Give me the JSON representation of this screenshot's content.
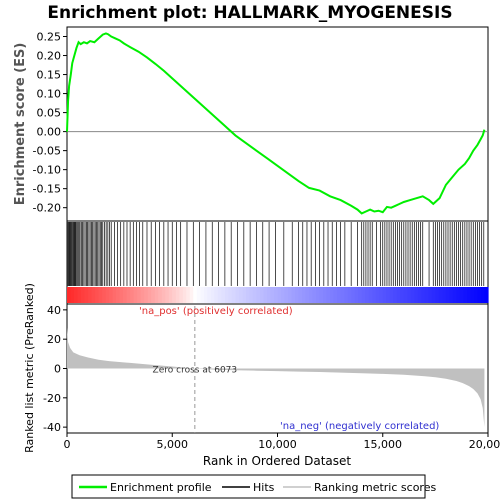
{
  "chart_data": {
    "type": "line",
    "title": "Enrichment plot: HALLMARK_MYOGENESIS",
    "es_panel": {
      "ylabel": "Enrichment score (ES)",
      "ylim": [
        -0.235,
        0.275
      ],
      "yticks": [
        0.25,
        0.2,
        0.15,
        0.1,
        0.05,
        0.0,
        -0.05,
        -0.1,
        -0.15,
        -0.2
      ],
      "ytick_labels": [
        "0.25",
        "0.20",
        "0.15",
        "0.10",
        "0.05",
        "0.00",
        "-0.05",
        "-0.10",
        "-0.15",
        "-0.20"
      ],
      "series": [
        {
          "name": "Enrichment profile",
          "color": "#00ee00",
          "x": [
            0,
            50,
            100,
            180,
            250,
            350,
            450,
            550,
            650,
            800,
            950,
            1100,
            1300,
            1500,
            1700,
            1850,
            1950,
            2100,
            2300,
            2500,
            2700,
            3000,
            3400,
            3800,
            4200,
            4600,
            5000,
            5500,
            6000,
            6500,
            7000,
            7500,
            8000,
            8500,
            9000,
            9500,
            10000,
            10500,
            11000,
            11500,
            12000,
            12500,
            13000,
            13500,
            13800,
            14000,
            14200,
            14400,
            14600,
            14800,
            15000,
            15200,
            15400,
            15600,
            15800,
            16000,
            16300,
            16600,
            16900,
            17200,
            17400,
            17700,
            18000,
            18300,
            18600,
            18900,
            19100,
            19300,
            19500,
            19650,
            19750,
            19830
          ],
          "y": [
            0.0,
            0.08,
            0.12,
            0.15,
            0.18,
            0.2,
            0.22,
            0.235,
            0.23,
            0.235,
            0.232,
            0.238,
            0.235,
            0.245,
            0.255,
            0.258,
            0.256,
            0.25,
            0.245,
            0.24,
            0.232,
            0.222,
            0.21,
            0.195,
            0.178,
            0.16,
            0.14,
            0.115,
            0.09,
            0.065,
            0.04,
            0.015,
            -0.01,
            -0.03,
            -0.05,
            -0.07,
            -0.09,
            -0.11,
            -0.13,
            -0.148,
            -0.155,
            -0.17,
            -0.18,
            -0.195,
            -0.205,
            -0.215,
            -0.21,
            -0.205,
            -0.21,
            -0.208,
            -0.212,
            -0.198,
            -0.2,
            -0.195,
            -0.19,
            -0.185,
            -0.18,
            -0.175,
            -0.17,
            -0.18,
            -0.19,
            -0.175,
            -0.14,
            -0.12,
            -0.1,
            -0.085,
            -0.07,
            -0.05,
            -0.035,
            -0.02,
            -0.01,
            0.005
          ]
        }
      ]
    },
    "hits_panel": {
      "hit_ranks": [
        20,
        60,
        100,
        140,
        180,
        220,
        260,
        300,
        340,
        380,
        420,
        470,
        520,
        570,
        620,
        680,
        740,
        800,
        860,
        920,
        980,
        1040,
        1100,
        1160,
        1220,
        1280,
        1340,
        1400,
        1460,
        1520,
        1580,
        1640,
        1700,
        1780,
        1860,
        1940,
        2020,
        2100,
        2250,
        2400,
        2550,
        2700,
        2850,
        3000,
        3150,
        3300,
        3450,
        3600,
        3800,
        4000,
        4200,
        4400,
        4600,
        4800,
        5000,
        5200,
        5400,
        5700,
        6000,
        6300,
        6600,
        6900,
        7200,
        7500,
        7800,
        8100,
        8400,
        8700,
        9000,
        9300,
        9600,
        9900,
        10300,
        10700,
        11000,
        11200,
        11400,
        11600,
        11800,
        12000,
        12200,
        12400,
        12600,
        12800,
        13000,
        13200,
        13500,
        13800,
        14000,
        14100,
        14200,
        14300,
        14400,
        14500,
        14700,
        14900,
        15000,
        15100,
        15200,
        15300,
        15400,
        15500,
        15600,
        15700,
        15800,
        15900,
        16000,
        16100,
        16200,
        16300,
        16400,
        16500,
        16600,
        16700,
        16800,
        16900,
        17200,
        17400,
        17500,
        17600,
        17700,
        17800,
        17900,
        18000,
        18100,
        18200,
        18300,
        18400,
        18500,
        18600,
        18700,
        18800,
        18900,
        19000,
        19100,
        19200,
        19300,
        19400,
        19500,
        19600,
        19700,
        19800
      ]
    },
    "metric_panel": {
      "ylabel": "Ranked list metric (PreRanked)",
      "xlabel": "Rank in Ordered Dataset",
      "ylim": [
        -44,
        44
      ],
      "yticks": [
        40,
        20,
        0,
        -20,
        -40
      ],
      "ytick_labels": [
        "40",
        "20",
        "0",
        "-20",
        "-40"
      ],
      "xlim": [
        0,
        20000
      ],
      "xticks": [
        0,
        5000,
        10000,
        15000,
        20000
      ],
      "xtick_labels": [
        "0",
        "5,000",
        "10,000",
        "15,000",
        "20,000"
      ],
      "metric_x": [
        0,
        50,
        150,
        300,
        600,
        1000,
        1500,
        2000,
        3000,
        4000,
        5000,
        6073,
        7000,
        8000,
        9000,
        10000,
        11000,
        12000,
        13000,
        14000,
        15000,
        16000,
        17000,
        17500,
        18000,
        18500,
        18800,
        19100,
        19300,
        19500,
        19650,
        19750,
        19830
      ],
      "metric_y": [
        28,
        18,
        14,
        11,
        9,
        7.5,
        6,
        5,
        3.8,
        2.6,
        1.4,
        0,
        -0.8,
        -1.2,
        -1.5,
        -1.8,
        -2.1,
        -2.4,
        -2.8,
        -3.2,
        -3.7,
        -4.3,
        -5.3,
        -6,
        -7,
        -8.5,
        -10,
        -12,
        -14,
        -17,
        -21,
        -27,
        -40
      ],
      "zero_cross_rank": 6073,
      "zero_cross_label": "Zero cross at 6073",
      "pos_label": "'na_pos' (positively correlated)",
      "neg_label": "'na_neg' (negatively correlated)",
      "pos_color": "#ff0000",
      "neg_color": "#0000ff"
    },
    "legend": {
      "placement": "bottom",
      "items": [
        {
          "label": "Enrichment profile",
          "color": "#00ee00",
          "kind": "line"
        },
        {
          "label": "Hits",
          "color": "#000000",
          "kind": "line"
        },
        {
          "label": "Ranking metric scores",
          "color": "#c0c0c0",
          "kind": "line"
        }
      ]
    }
  }
}
